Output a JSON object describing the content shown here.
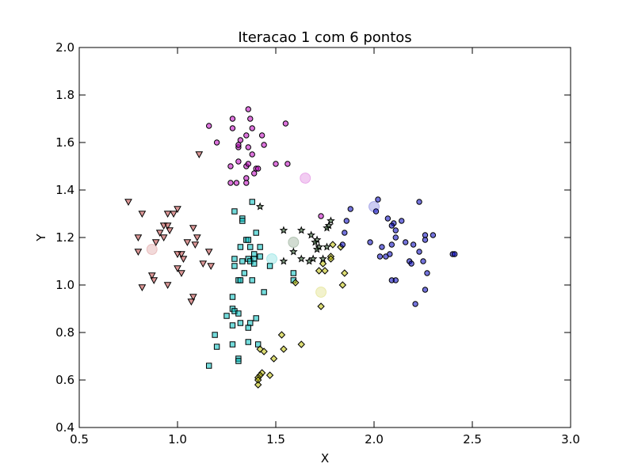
{
  "chart_data": {
    "type": "scatter",
    "title": "Iteracao 1 com 6 pontos",
    "xlabel": "X",
    "ylabel": "Y",
    "xlim": [
      0.5,
      3.0
    ],
    "ylim": [
      0.4,
      2.0
    ],
    "xticks": [
      "0.5",
      "1.0",
      "1.5",
      "2.0",
      "2.5",
      "3.0"
    ],
    "yticks": [
      "0.4",
      "0.6",
      "0.8",
      "1.0",
      "1.2",
      "1.4",
      "1.6",
      "1.8",
      "2.0"
    ],
    "grid": false,
    "series": [
      {
        "marker": "circle",
        "color": "#bf00bf",
        "points": [
          [
            1.16,
            1.67
          ],
          [
            1.2,
            1.6
          ],
          [
            1.28,
            1.66
          ],
          [
            1.28,
            1.7
          ],
          [
            1.36,
            1.74
          ],
          [
            1.37,
            1.7
          ],
          [
            1.38,
            1.66
          ],
          [
            1.32,
            1.61
          ],
          [
            1.31,
            1.58
          ],
          [
            1.31,
            1.59
          ],
          [
            1.35,
            1.63
          ],
          [
            1.36,
            1.58
          ],
          [
            1.43,
            1.63
          ],
          [
            1.44,
            1.59
          ],
          [
            1.55,
            1.68
          ],
          [
            1.27,
            1.5
          ],
          [
            1.31,
            1.52
          ],
          [
            1.35,
            1.5
          ],
          [
            1.36,
            1.51
          ],
          [
            1.38,
            1.55
          ],
          [
            1.4,
            1.49
          ],
          [
            1.41,
            1.49
          ],
          [
            1.39,
            1.47
          ],
          [
            1.35,
            1.45
          ],
          [
            1.35,
            1.43
          ],
          [
            1.3,
            1.43
          ],
          [
            1.27,
            1.43
          ],
          [
            1.5,
            1.51
          ],
          [
            1.56,
            1.51
          ],
          [
            1.73,
            1.29
          ]
        ],
        "centroid": [
          1.65,
          1.45
        ]
      },
      {
        "marker": "triangle-down",
        "color": "#bf3f3f",
        "points": [
          [
            0.75,
            1.35
          ],
          [
            0.82,
            1.3
          ],
          [
            0.8,
            1.2
          ],
          [
            0.8,
            1.14
          ],
          [
            0.89,
            1.18
          ],
          [
            0.91,
            1.22
          ],
          [
            0.93,
            1.25
          ],
          [
            0.95,
            1.25
          ],
          [
            0.93,
            1.2
          ],
          [
            0.96,
            1.23
          ],
          [
            0.95,
            1.3
          ],
          [
            0.98,
            1.3
          ],
          [
            1.0,
            1.32
          ],
          [
            1.08,
            1.24
          ],
          [
            1.02,
            1.13
          ],
          [
            1.03,
            1.11
          ],
          [
            1.05,
            1.18
          ],
          [
            1.09,
            1.17
          ],
          [
            1.1,
            1.2
          ],
          [
            1.13,
            1.09
          ],
          [
            1.16,
            1.14
          ],
          [
            1.17,
            1.08
          ],
          [
            1.0,
            1.07
          ],
          [
            1.02,
            1.05
          ],
          [
            0.87,
            1.04
          ],
          [
            0.88,
            1.02
          ],
          [
            0.82,
            0.99
          ],
          [
            0.95,
            1.0
          ],
          [
            1.08,
            0.95
          ],
          [
            1.07,
            0.93
          ],
          [
            1.11,
            1.55
          ],
          [
            1.0,
            1.13
          ]
        ],
        "centroid": [
          0.87,
          1.15
        ]
      },
      {
        "marker": "square",
        "color": "#00bfbf",
        "points": [
          [
            1.38,
            1.35
          ],
          [
            1.29,
            1.31
          ],
          [
            1.33,
            1.28
          ],
          [
            1.33,
            1.27
          ],
          [
            1.4,
            1.22
          ],
          [
            1.35,
            1.19
          ],
          [
            1.36,
            1.19
          ],
          [
            1.32,
            1.16
          ],
          [
            1.37,
            1.16
          ],
          [
            1.39,
            1.13
          ],
          [
            1.36,
            1.11
          ],
          [
            1.37,
            1.1
          ],
          [
            1.39,
            1.11
          ],
          [
            1.42,
            1.16
          ],
          [
            1.42,
            1.12
          ],
          [
            1.29,
            1.11
          ],
          [
            1.29,
            1.08
          ],
          [
            1.33,
            1.1
          ],
          [
            1.39,
            1.09
          ],
          [
            1.34,
            1.05
          ],
          [
            1.31,
            1.02
          ],
          [
            1.32,
            1.02
          ],
          [
            1.38,
            1.02
          ],
          [
            1.47,
            1.08
          ],
          [
            1.44,
            0.97
          ],
          [
            1.59,
            1.05
          ],
          [
            1.59,
            1.02
          ],
          [
            1.28,
            0.95
          ],
          [
            1.28,
            0.9
          ],
          [
            1.29,
            0.89
          ],
          [
            1.31,
            0.88
          ],
          [
            1.25,
            0.87
          ],
          [
            1.4,
            0.86
          ],
          [
            1.32,
            0.84
          ],
          [
            1.37,
            0.84
          ],
          [
            1.28,
            0.83
          ],
          [
            1.36,
            0.82
          ],
          [
            1.19,
            0.79
          ],
          [
            1.2,
            0.74
          ],
          [
            1.28,
            0.75
          ],
          [
            1.41,
            0.75
          ],
          [
            1.31,
            0.69
          ],
          [
            1.31,
            0.68
          ],
          [
            1.16,
            0.66
          ],
          [
            1.36,
            0.76
          ]
        ],
        "centroid": [
          1.48,
          1.11
        ]
      },
      {
        "marker": "star",
        "color": "#1f4f1f",
        "points": [
          [
            1.42,
            1.33
          ],
          [
            1.54,
            1.23
          ],
          [
            1.63,
            1.23
          ],
          [
            1.77,
            1.25
          ],
          [
            1.78,
            1.27
          ],
          [
            1.76,
            1.24
          ],
          [
            1.71,
            1.19
          ],
          [
            1.68,
            1.21
          ],
          [
            1.7,
            1.18
          ],
          [
            1.72,
            1.16
          ],
          [
            1.71,
            1.15
          ],
          [
            1.74,
            1.11
          ],
          [
            1.76,
            1.16
          ],
          [
            1.63,
            1.11
          ],
          [
            1.69,
            1.11
          ],
          [
            1.59,
            1.14
          ],
          [
            1.54,
            1.1
          ],
          [
            1.67,
            1.1
          ]
        ],
        "centroid": [
          1.59,
          1.18
        ]
      },
      {
        "marker": "diamond",
        "color": "#bfbf00",
        "points": [
          [
            1.79,
            1.17
          ],
          [
            1.78,
            1.12
          ],
          [
            1.83,
            1.16
          ],
          [
            1.74,
            1.09
          ],
          [
            1.78,
            1.11
          ],
          [
            1.75,
            1.06
          ],
          [
            1.85,
            1.05
          ],
          [
            1.84,
            1.0
          ],
          [
            1.72,
            1.06
          ],
          [
            1.6,
            1.01
          ],
          [
            1.73,
            0.91
          ],
          [
            1.53,
            0.79
          ],
          [
            1.63,
            0.75
          ],
          [
            1.54,
            0.73
          ],
          [
            1.42,
            0.73
          ],
          [
            1.44,
            0.72
          ],
          [
            1.49,
            0.69
          ],
          [
            1.47,
            0.62
          ],
          [
            1.43,
            0.63
          ],
          [
            1.42,
            0.62
          ],
          [
            1.41,
            0.61
          ],
          [
            1.41,
            0.6
          ],
          [
            1.41,
            0.58
          ]
        ],
        "centroid": [
          1.73,
          0.97
        ]
      },
      {
        "marker": "circle",
        "color": "#0000bf",
        "points": [
          [
            1.86,
            1.27
          ],
          [
            1.88,
            1.32
          ],
          [
            1.85,
            1.22
          ],
          [
            1.84,
            1.17
          ],
          [
            2.02,
            1.36
          ],
          [
            2.01,
            1.31
          ],
          [
            2.1,
            1.26
          ],
          [
            2.11,
            1.23
          ],
          [
            2.14,
            1.27
          ],
          [
            2.09,
            1.25
          ],
          [
            2.07,
            1.28
          ],
          [
            2.11,
            1.2
          ],
          [
            2.23,
            1.35
          ],
          [
            2.26,
            1.21
          ],
          [
            2.3,
            1.21
          ],
          [
            2.26,
            1.19
          ],
          [
            2.16,
            1.18
          ],
          [
            1.98,
            1.18
          ],
          [
            2.04,
            1.16
          ],
          [
            2.09,
            1.17
          ],
          [
            2.2,
            1.17
          ],
          [
            2.23,
            1.14
          ],
          [
            2.4,
            1.13
          ],
          [
            2.41,
            1.13
          ],
          [
            2.06,
            1.12
          ],
          [
            2.08,
            1.13
          ],
          [
            2.18,
            1.1
          ],
          [
            2.19,
            1.09
          ],
          [
            2.25,
            1.1
          ],
          [
            2.27,
            1.05
          ],
          [
            2.09,
            1.02
          ],
          [
            2.11,
            1.02
          ],
          [
            2.26,
            0.98
          ],
          [
            2.21,
            0.92
          ],
          [
            2.03,
            1.12
          ]
        ],
        "centroid": [
          2.0,
          1.33
        ]
      }
    ]
  }
}
